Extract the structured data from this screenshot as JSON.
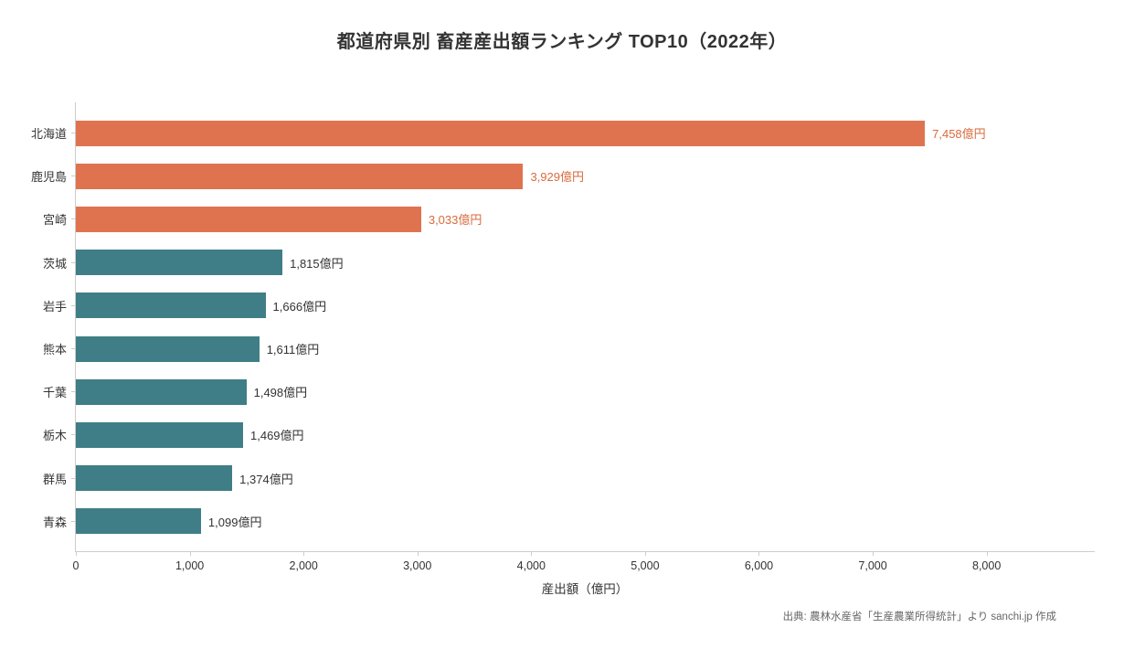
{
  "chart_data": {
    "type": "bar",
    "orientation": "horizontal",
    "title": "都道府県別 畜産産出額ランキング TOP10（2022年）",
    "xlabel": "産出額（億円）",
    "categories": [
      "北海道",
      "鹿児島",
      "宮崎",
      "茨城",
      "岩手",
      "熊本",
      "千葉",
      "栃木",
      "群馬",
      "青森"
    ],
    "values": [
      7458,
      3929,
      3033,
      1815,
      1666,
      1611,
      1498,
      1469,
      1374,
      1099
    ],
    "value_labels": [
      "7,458億円",
      "3,929億円",
      "3,033億円",
      "1,815億円",
      "1,666億円",
      "1,611億円",
      "1,498億円",
      "1,469億円",
      "1,374億円",
      "1,099億円"
    ],
    "highlight_count": 3,
    "colors": {
      "highlight": "#df7350",
      "base": "#3f7e86",
      "highlight_text": "#d96a3c",
      "base_text": "#333333"
    },
    "xlim": [
      0,
      8950
    ],
    "x_max": 8950,
    "x_tick_values": [
      0,
      1000,
      2000,
      3000,
      4000,
      5000,
      6000,
      7000,
      8000
    ],
    "x_tick_labels": [
      "0",
      "1,000",
      "2,000",
      "3,000",
      "4,000",
      "5,000",
      "6,000",
      "7,000",
      "8,000"
    ],
    "grid": false,
    "legend": false,
    "source": "出典: 農林水産省「生産農業所得統計」より sanchi.jp 作成"
  }
}
